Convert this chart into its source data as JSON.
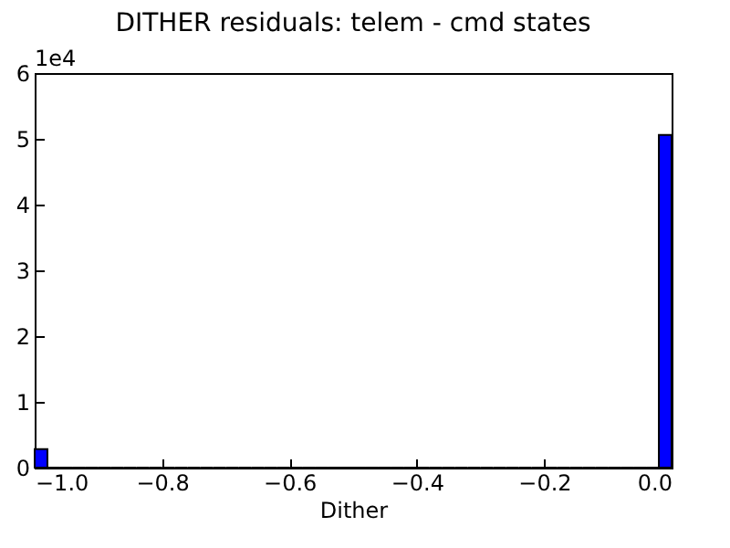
{
  "chart_data": {
    "type": "histogram",
    "title": "DITHER residuals: telem - cmd states",
    "xlabel": "Dither",
    "bins": [
      -1,
      -0.98,
      -0.96,
      -0.94,
      -0.92,
      -0.9,
      -0.88,
      -0.86,
      -0.84,
      -0.82,
      -0.8,
      -0.78,
      -0.76,
      -0.74,
      -0.72,
      -0.7,
      -0.68,
      -0.66,
      -0.64,
      -0.62,
      -0.6,
      -0.58,
      -0.56,
      -0.54,
      -0.52,
      -0.5,
      -0.48,
      -0.46,
      -0.44,
      -0.42,
      -0.4,
      -0.38,
      -0.36,
      -0.34,
      -0.32,
      -0.3,
      -0.28,
      -0.26,
      -0.24,
      -0.22,
      -0.2,
      -0.18,
      -0.16,
      -0.14,
      -0.12,
      -0.1,
      -0.08,
      -0.06,
      -0.04,
      -0.02,
      0
    ],
    "values": [
      0.28,
      0,
      0,
      0,
      0,
      0,
      0,
      0,
      0,
      0,
      0,
      0,
      0,
      0,
      0,
      0,
      0,
      0,
      0,
      0,
      0,
      0,
      0,
      0,
      0,
      0,
      0,
      0,
      0,
      0,
      0,
      0,
      0,
      0,
      0,
      0,
      0,
      0,
      0,
      0,
      0,
      0,
      0,
      0,
      0,
      0,
      0,
      0,
      0,
      5.06
    ],
    "color": "#0000ff",
    "xlim": [
      -1,
      0
    ],
    "xticks": [
      {
        "value": -1,
        "label": "−1.0"
      },
      {
        "value": -0.8,
        "label": "−0.8"
      },
      {
        "value": -0.6,
        "label": "−0.6"
      },
      {
        "value": -0.4,
        "label": "−0.4"
      },
      {
        "value": -0.2,
        "label": "−0.2"
      },
      {
        "value": 0,
        "label": "0.0"
      }
    ],
    "ylim": [
      0,
      6
    ],
    "yticks": [
      0,
      1,
      2,
      3,
      4,
      5,
      6
    ],
    "annotations": [
      "1e4"
    ],
    "grid": false
  }
}
